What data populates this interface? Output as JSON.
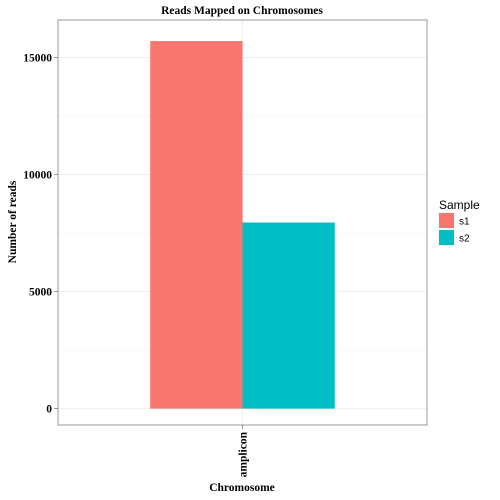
{
  "chart_data": {
    "type": "bar",
    "title": "Reads Mapped on Chromosomes",
    "xlabel": "Chromosome",
    "ylabel": "Number of reads",
    "categories": [
      "amplicon"
    ],
    "series": [
      {
        "name": "s1",
        "values": [
          15700
        ],
        "color": "#F8766D"
      },
      {
        "name": "s2",
        "values": [
          7950
        ],
        "color": "#00BFC4"
      }
    ],
    "yticks": [
      0,
      5000,
      10000,
      15000
    ],
    "ylim": [
      -700,
      16600
    ],
    "grid": true,
    "legend": {
      "title": "Sample",
      "position": "right"
    }
  }
}
